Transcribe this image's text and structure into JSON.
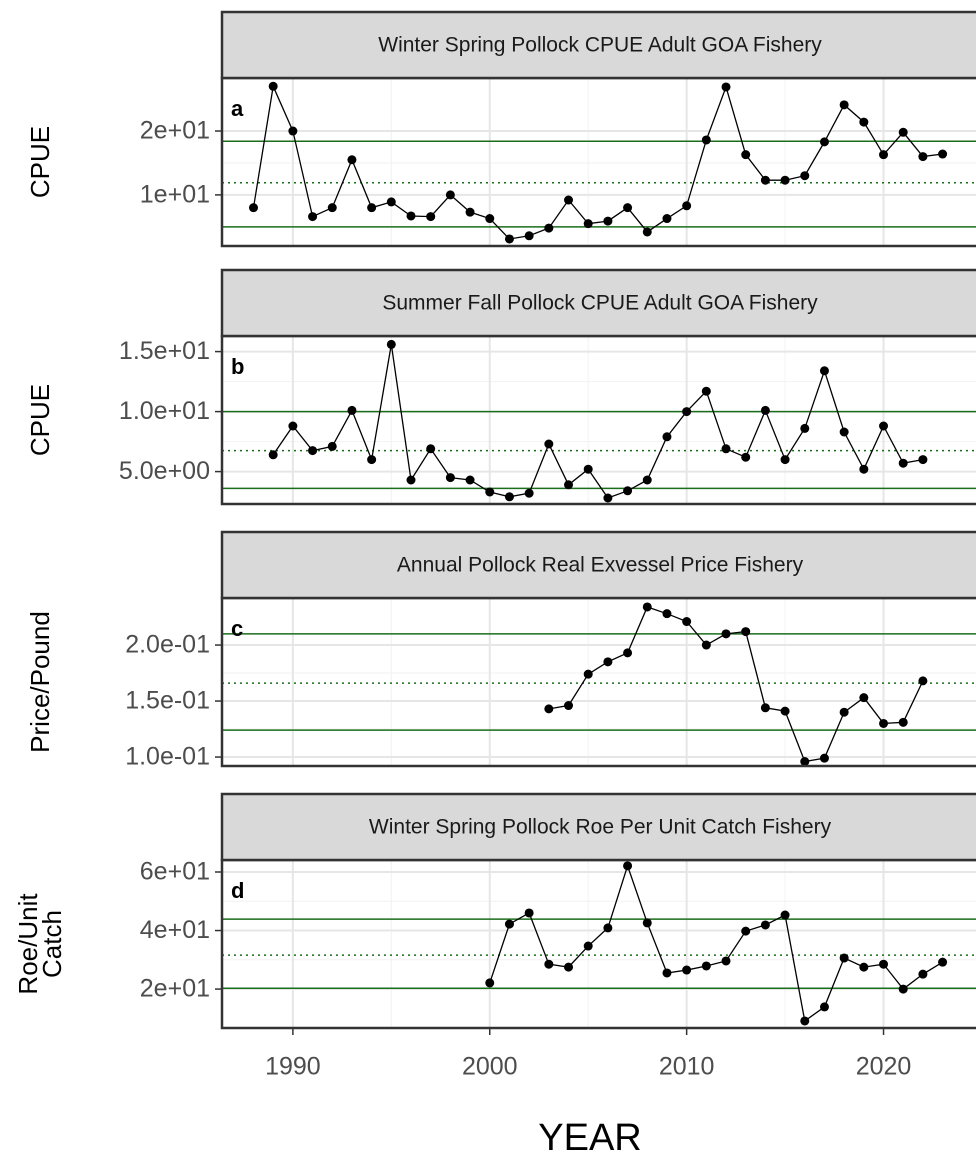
{
  "chart_data": [
    {
      "type": "line",
      "title": "Winter Spring Pollock CPUE Adult GOA Fishery",
      "panel_label": "a",
      "ylabel": [
        "CPUE"
      ],
      "x": [
        1988,
        1989,
        1990,
        1991,
        1992,
        1993,
        1994,
        1995,
        1996,
        1997,
        1998,
        1999,
        2000,
        2001,
        2002,
        2003,
        2004,
        2005,
        2006,
        2007,
        2008,
        2009,
        2010,
        2011,
        2012,
        2013,
        2014,
        2015,
        2016,
        2017,
        2018,
        2019,
        2020,
        2021,
        2022,
        2023
      ],
      "values": [
        8.0,
        27.0,
        20.0,
        6.6,
        8.0,
        15.5,
        8.0,
        8.9,
        6.7,
        6.6,
        10.0,
        7.3,
        6.3,
        3.1,
        3.6,
        4.8,
        9.2,
        5.5,
        5.9,
        8.0,
        4.2,
        6.3,
        8.3,
        18.6,
        26.9,
        16.3,
        12.3,
        12.3,
        13.0,
        18.3,
        24.1,
        21.4,
        16.3,
        19.8,
        16.0,
        16.4
      ],
      "xlim": [
        1986.4,
        2024.9
      ],
      "ylim": [
        2.0,
        28.3
      ],
      "yticks": [
        {
          "value": 10,
          "label": "1e+01"
        },
        {
          "value": 20,
          "label": "2e+01"
        }
      ],
      "reference_lines": [
        {
          "value": 18.4,
          "style": "solid"
        },
        {
          "value": 11.9,
          "style": "dotted"
        },
        {
          "value": 5.0,
          "style": "solid"
        }
      ],
      "color": "#000000",
      "reference_color": "#1a6e1a"
    },
    {
      "type": "line",
      "title": "Summer Fall Pollock CPUE Adult GOA Fishery",
      "panel_label": "b",
      "ylabel": [
        "CPUE"
      ],
      "x": [
        1989,
        1990,
        1991,
        1992,
        1993,
        1994,
        1995,
        1996,
        1997,
        1998,
        1999,
        2000,
        2001,
        2002,
        2003,
        2004,
        2005,
        2006,
        2007,
        2008,
        2009,
        2010,
        2011,
        2012,
        2013,
        2014,
        2015,
        2016,
        2017,
        2018,
        2019,
        2020,
        2021,
        2022
      ],
      "values": [
        6.4,
        8.8,
        6.75,
        7.1,
        10.1,
        6.0,
        15.6,
        4.3,
        6.9,
        4.5,
        4.3,
        3.3,
        2.9,
        3.2,
        7.3,
        3.9,
        5.2,
        2.8,
        3.4,
        4.3,
        7.9,
        10.0,
        11.7,
        6.9,
        6.2,
        10.1,
        6.0,
        8.6,
        13.4,
        8.3,
        5.2,
        8.8,
        5.7,
        6.0
      ],
      "xlim": [
        1986.4,
        2024.9
      ],
      "ylim": [
        2.3,
        16.3
      ],
      "yticks": [
        {
          "value": 5,
          "label": "5.0e+00"
        },
        {
          "value": 10,
          "label": "1.0e+01"
        },
        {
          "value": 15,
          "label": "1.5e+01"
        }
      ],
      "reference_lines": [
        {
          "value": 10.0,
          "style": "solid"
        },
        {
          "value": 6.75,
          "style": "dotted"
        },
        {
          "value": 3.6,
          "style": "solid"
        }
      ],
      "color": "#000000",
      "reference_color": "#1a6e1a"
    },
    {
      "type": "line",
      "title": "Annual Pollock Real Exvessel Price Fishery",
      "panel_label": "c",
      "ylabel": [
        "Price/Pound"
      ],
      "x": [
        2003,
        2004,
        2005,
        2006,
        2007,
        2008,
        2009,
        2010,
        2011,
        2012,
        2013,
        2014,
        2015,
        2016,
        2017,
        2018,
        2019,
        2020,
        2021,
        2022
      ],
      "values": [
        0.143,
        0.146,
        0.174,
        0.185,
        0.193,
        0.234,
        0.228,
        0.221,
        0.2,
        0.21,
        0.212,
        0.144,
        0.141,
        0.096,
        0.099,
        0.14,
        0.153,
        0.13,
        0.131,
        0.168
      ],
      "xlim": [
        1986.4,
        2024.9
      ],
      "ylim": [
        0.092,
        0.242
      ],
      "yticks": [
        {
          "value": 0.1,
          "label": "1.0e-01"
        },
        {
          "value": 0.15,
          "label": "1.5e-01"
        },
        {
          "value": 0.2,
          "label": "2.0e-01"
        }
      ],
      "reference_lines": [
        {
          "value": 0.21,
          "style": "solid"
        },
        {
          "value": 0.166,
          "style": "dotted"
        },
        {
          "value": 0.124,
          "style": "solid"
        }
      ],
      "color": "#000000",
      "reference_color": "#1a6e1a"
    },
    {
      "type": "line",
      "title": "Winter Spring Pollock Roe Per Unit Catch Fishery",
      "panel_label": "d",
      "ylabel": [
        "Roe/Unit",
        "Catch"
      ],
      "x": [
        2000,
        2001,
        2002,
        2003,
        2004,
        2005,
        2006,
        2007,
        2008,
        2009,
        2010,
        2011,
        2012,
        2013,
        2014,
        2015,
        2016,
        2017,
        2018,
        2019,
        2020,
        2021,
        2022,
        2023
      ],
      "values": [
        22.1,
        42.2,
        46.0,
        28.5,
        27.5,
        34.7,
        40.9,
        62.1,
        42.6,
        25.5,
        26.5,
        27.9,
        29.6,
        39.8,
        41.9,
        45.3,
        9.1,
        13.9,
        30.6,
        27.5,
        28.5,
        20.0,
        25.1,
        29.2
      ],
      "xlim": [
        1986.4,
        2024.9
      ],
      "ylim": [
        6.7,
        64.1
      ],
      "yticks": [
        {
          "value": 20,
          "label": "2e+01"
        },
        {
          "value": 40,
          "label": "4e+01"
        },
        {
          "value": 60,
          "label": "6e+01"
        }
      ],
      "xticks": [
        1990,
        2000,
        2010,
        2020
      ],
      "xlabel": "YEAR",
      "reference_lines": [
        {
          "value": 43.9,
          "style": "solid"
        },
        {
          "value": 31.6,
          "style": "dotted"
        },
        {
          "value": 20.3,
          "style": "solid"
        }
      ],
      "color": "#000000",
      "reference_color": "#1a6e1a"
    }
  ]
}
